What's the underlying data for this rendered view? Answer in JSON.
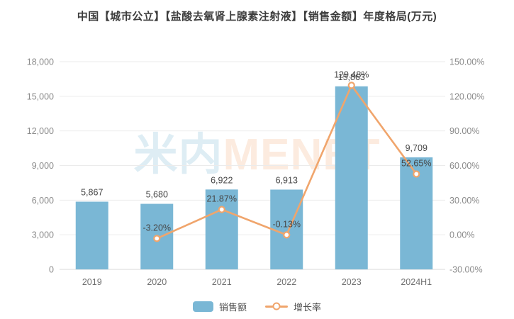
{
  "title": "中国【城市公立】【盐酸去氧肾上腺素注射液】【销售金额】年度格局(万元)",
  "watermark": {
    "cn": "米内",
    "en": "MENET"
  },
  "legend": [
    {
      "label": "销售额",
      "type": "bar"
    },
    {
      "label": "增长率",
      "type": "line"
    }
  ],
  "colors": {
    "bar": "#7ab7d5",
    "line": "#f0a56c",
    "marker_fill": "#ffffff",
    "grid": "#ebebeb",
    "axis_line": "#d9d9d9",
    "axis_text": "#8b8b8b",
    "category_text": "#6e6e6e",
    "data_label_text": "#474747",
    "title_text": "#3c3c3c"
  },
  "chart_data": {
    "type": "bar+line combo",
    "title": "中国【城市公立】【盐酸去氧肾上腺素注射液】【销售金额】年度格局(万元)",
    "categories": [
      "2019",
      "2020",
      "2021",
      "2022",
      "2023",
      "2024H1"
    ],
    "series": [
      {
        "name": "销售额",
        "type": "bar",
        "axis": "left",
        "values": [
          5867,
          5680,
          6922,
          6913,
          15863,
          9709
        ],
        "labels": [
          "5,867",
          "5,680",
          "6,922",
          "6,913",
          "15,863",
          "9,709"
        ]
      },
      {
        "name": "增长率",
        "type": "line",
        "axis": "right",
        "values": [
          null,
          -3.2,
          21.87,
          -0.13,
          129.48,
          52.65
        ],
        "labels": [
          null,
          "-3.20%",
          "21.87%",
          "-0.13%",
          "129.48%",
          "52.65%"
        ]
      }
    ],
    "left_axis": {
      "min": 0,
      "max": 18000,
      "step": 3000,
      "ticks": [
        "0",
        "3,000",
        "6,000",
        "9,000",
        "12,000",
        "15,000",
        "18,000"
      ]
    },
    "right_axis": {
      "min": -30,
      "max": 150,
      "step": 30,
      "ticks": [
        "-30.00%",
        "0.00%",
        "30.00%",
        "60.00%",
        "90.00%",
        "120.00%",
        "150.00%"
      ]
    },
    "grid": true,
    "legend_position": "bottom"
  }
}
